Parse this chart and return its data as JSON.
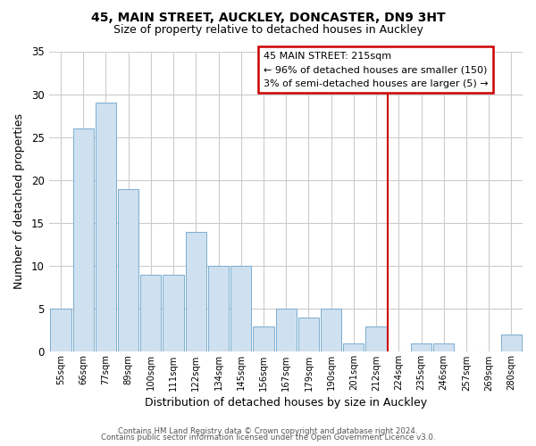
{
  "title": "45, MAIN STREET, AUCKLEY, DONCASTER, DN9 3HT",
  "subtitle": "Size of property relative to detached houses in Auckley",
  "xlabel": "Distribution of detached houses by size in Auckley",
  "ylabel": "Number of detached properties",
  "bar_color": "#cfe0f0",
  "bar_edgecolor": "#7aadcf",
  "background_color": "#ffffff",
  "plot_bg_color": "#ffffff",
  "grid_color": "#cccccc",
  "categories": [
    "55sqm",
    "66sqm",
    "77sqm",
    "89sqm",
    "100sqm",
    "111sqm",
    "122sqm",
    "134sqm",
    "145sqm",
    "156sqm",
    "167sqm",
    "179sqm",
    "190sqm",
    "201sqm",
    "212sqm",
    "224sqm",
    "235sqm",
    "246sqm",
    "257sqm",
    "269sqm",
    "280sqm"
  ],
  "values": [
    5,
    26,
    29,
    19,
    9,
    9,
    14,
    10,
    10,
    3,
    5,
    4,
    5,
    1,
    3,
    0,
    1,
    1,
    0,
    0,
    2
  ],
  "ylim": [
    0,
    35
  ],
  "yticks": [
    0,
    5,
    10,
    15,
    20,
    25,
    30,
    35
  ],
  "vline_x": 14.5,
  "vline_color": "#cc0000",
  "annotation_title": "45 MAIN STREET: 215sqm",
  "annotation_line1": "← 96% of detached houses are smaller (150)",
  "annotation_line2": "3% of semi-detached houses are larger (5) →",
  "annotation_box_color": "white",
  "annotation_border_color": "#cc0000",
  "footer_line1": "Contains HM Land Registry data © Crown copyright and database right 2024.",
  "footer_line2": "Contains public sector information licensed under the Open Government Licence v3.0."
}
